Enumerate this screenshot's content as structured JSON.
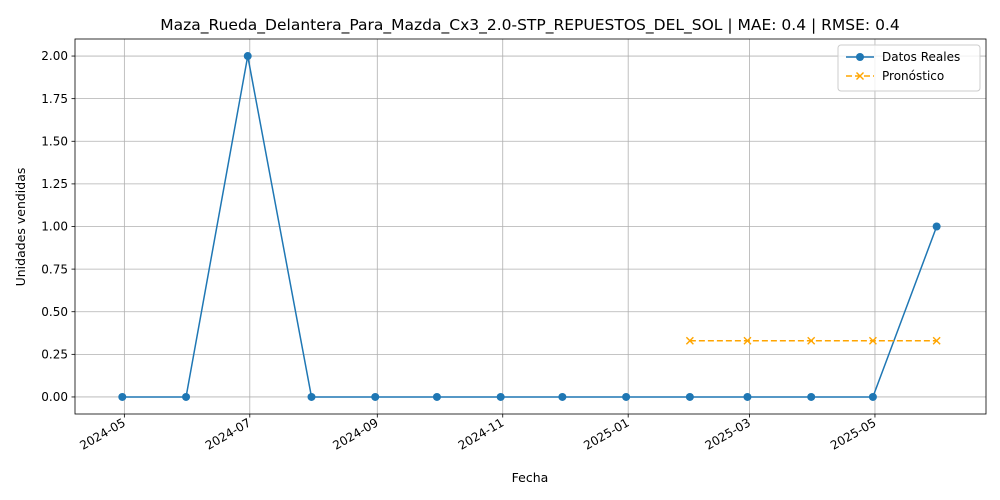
{
  "chart_data": {
    "type": "line",
    "title": "Maza_Rueda_Delantera_Para_Mazda_Cx3_2.0-STP_REPUESTOS_DEL_SOL | MAE: 0.4 | RMSE: 0.4",
    "xlabel": "Fecha",
    "ylabel": "Unidades vendidas",
    "x_tick_labels": [
      "2024-05",
      "2024-07",
      "2024-09",
      "2024-11",
      "2025-01",
      "2025-03",
      "2025-05"
    ],
    "x_ticks": [
      "2024-05-01",
      "2024-07-01",
      "2024-09-01",
      "2024-11-01",
      "2025-01-01",
      "2025-03-01",
      "2025-05-01"
    ],
    "y_ticks": [
      0.0,
      0.25,
      0.5,
      0.75,
      1.0,
      1.25,
      1.5,
      1.75,
      2.0
    ],
    "y_tick_labels": [
      "0.00",
      "0.25",
      "0.50",
      "0.75",
      "1.00",
      "1.25",
      "1.50",
      "1.75",
      "2.00"
    ],
    "xlim": [
      "2024-04-07",
      "2025-06-24"
    ],
    "ylim": [
      -0.1,
      2.1
    ],
    "grid": true,
    "legend_position": "top-right",
    "series": [
      {
        "name": "Datos Reales",
        "color": "#1f77b4",
        "marker": "circle",
        "linestyle": "solid",
        "x": [
          "2024-04-30",
          "2024-05-31",
          "2024-06-30",
          "2024-07-31",
          "2024-08-31",
          "2024-09-30",
          "2024-10-31",
          "2024-11-30",
          "2024-12-31",
          "2025-01-31",
          "2025-02-28",
          "2025-03-31",
          "2025-04-30",
          "2025-05-31"
        ],
        "values": [
          0,
          0,
          2,
          0,
          0,
          0,
          0,
          0,
          0,
          0,
          0,
          0,
          0,
          1
        ]
      },
      {
        "name": "Pronóstico",
        "color": "#ffa500",
        "marker": "x",
        "linestyle": "dashed",
        "x": [
          "2025-01-31",
          "2025-02-28",
          "2025-03-31",
          "2025-04-30",
          "2025-05-31"
        ],
        "values": [
          0.33,
          0.33,
          0.33,
          0.33,
          0.33
        ]
      }
    ]
  }
}
